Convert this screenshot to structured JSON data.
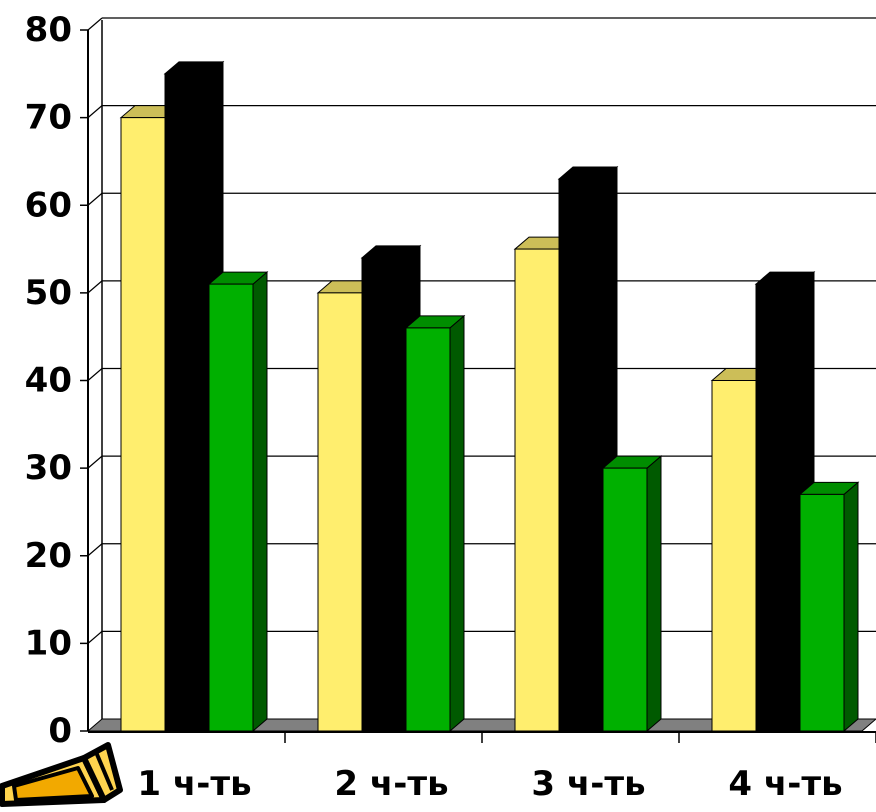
{
  "chart_data": {
    "type": "bar",
    "style": "3d-clustered-columns",
    "categories": [
      "1 ч-ть",
      "2 ч-ть",
      "3 ч-ть",
      "4 ч-ть"
    ],
    "series": [
      {
        "values": [
          70,
          50,
          55,
          40
        ],
        "color": "#FFEE6E",
        "side_color": "#C2B657"
      },
      {
        "values": [
          75,
          54,
          63,
          51
        ],
        "color": "#000000",
        "side_color": "#000000"
      },
      {
        "values": [
          51,
          46,
          30,
          27
        ],
        "color": "#00B000",
        "side_color": "#005A00"
      }
    ],
    "y_ticks": [
      "0",
      "10",
      "20",
      "30",
      "40",
      "50",
      "60",
      "70",
      "80"
    ],
    "ylim": [
      0,
      80
    ],
    "grid": true,
    "floor_color": "#808080",
    "title": "",
    "xlabel": "",
    "ylabel": ""
  },
  "decoration": {
    "icon": "pencil-icon",
    "colors": [
      "#000000",
      "#F2A900",
      "#FFD44F"
    ]
  }
}
